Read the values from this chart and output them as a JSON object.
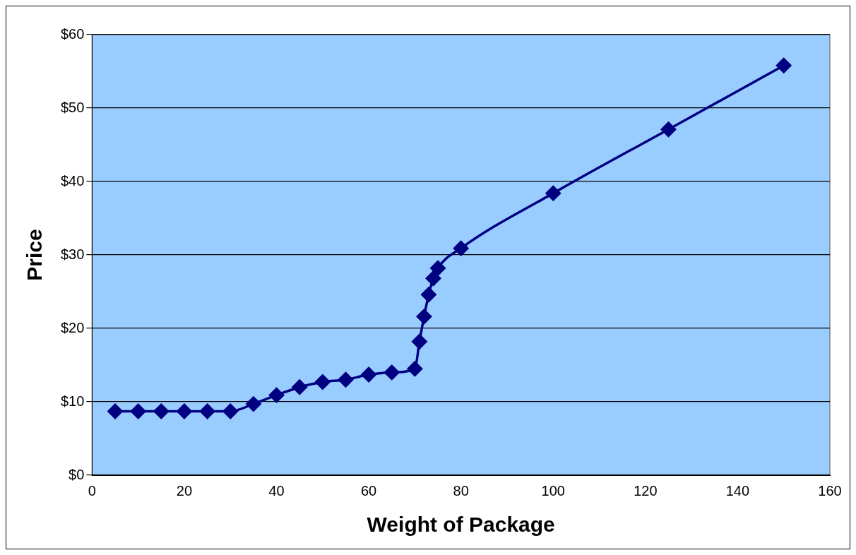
{
  "chart_data": {
    "type": "line",
    "xlabel": "Weight of Package",
    "ylabel": "Price",
    "x": [
      5,
      10,
      15,
      20,
      25,
      30,
      35,
      40,
      45,
      50,
      55,
      60,
      65,
      70,
      71,
      72,
      73,
      74,
      75,
      80,
      100,
      125,
      150
    ],
    "series": [
      {
        "color": "#000080",
        "values": [
          8.7,
          8.7,
          8.7,
          8.7,
          8.7,
          8.7,
          9.7,
          10.9,
          12.0,
          12.7,
          13.0,
          13.7,
          14.0,
          14.5,
          18.2,
          21.6,
          24.6,
          26.8,
          28.2,
          30.9,
          38.4,
          47.1,
          55.8
        ]
      }
    ],
    "xlim": [
      0,
      160
    ],
    "xticks": [
      0,
      20,
      40,
      60,
      80,
      100,
      120,
      140,
      160
    ],
    "ylim": [
      0,
      60
    ],
    "yticks": [
      {
        "value": 0,
        "label": "$0"
      },
      {
        "value": 10,
        "label": "$10"
      },
      {
        "value": 20,
        "label": "$20"
      },
      {
        "value": 30,
        "label": "$30"
      },
      {
        "value": 40,
        "label": "$40"
      },
      {
        "value": 50,
        "label": "$50"
      },
      {
        "value": 60,
        "label": "$60"
      }
    ],
    "grid": "y",
    "marker": "diamond",
    "line_style": "solid",
    "legend": false
  }
}
